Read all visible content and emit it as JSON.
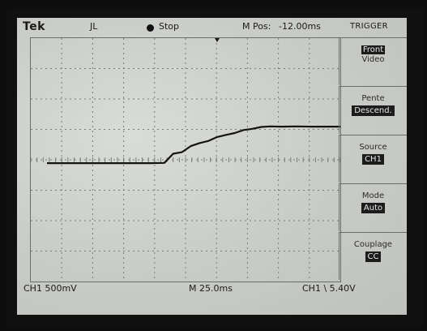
{
  "header": {
    "brand": "Tek",
    "trigger_symbol": "JL",
    "run_state": "Stop",
    "mpos_label": "M Pos:",
    "mpos_value": "-12.00ms",
    "menu_title": "TRIGGER"
  },
  "side_menu": [
    {
      "label": "Front",
      "value": "Video"
    },
    {
      "label": "Pente",
      "value": "Descend."
    },
    {
      "label": "Source",
      "value": "CH1"
    },
    {
      "label": "Mode",
      "value": "Auto"
    },
    {
      "label": "Couplage",
      "value": "CC"
    }
  ],
  "status": {
    "channel_scale": "CH1  500mV",
    "timebase": "M 25.0ms",
    "trigger_readout": "CH1 \\  5.40V"
  },
  "colors": {
    "screen_bg": "#cfd1cd",
    "trace": "#141414",
    "grid": "#7a7c78"
  },
  "chart_data": {
    "type": "line",
    "title": "",
    "xlabel": "",
    "ylabel": "",
    "x_divisions": 10,
    "y_divisions": 8,
    "grid": true,
    "series": [
      {
        "x": [
          0.0,
          0.5,
          1.0,
          1.5,
          2.0,
          2.5,
          3.0,
          3.5,
          4.0,
          4.3,
          4.6,
          4.9,
          5.2,
          5.5,
          5.8,
          6.1,
          6.4,
          6.7,
          7.0,
          7.3,
          7.6,
          8.0,
          8.5,
          9.0,
          9.5,
          10.0
        ],
        "y": [
          -0.11,
          -0.11,
          -0.11,
          -0.11,
          -0.11,
          -0.11,
          -0.11,
          -0.11,
          -0.1,
          0.2,
          0.25,
          0.45,
          0.55,
          0.62,
          0.75,
          0.82,
          0.88,
          0.98,
          1.02,
          1.08,
          1.1,
          1.09,
          1.1,
          1.09,
          1.09,
          1.09
        ]
      }
    ]
  }
}
